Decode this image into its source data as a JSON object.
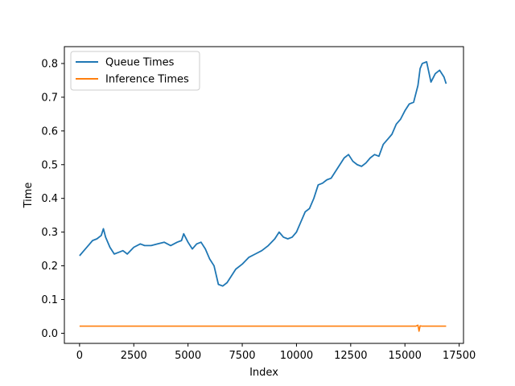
{
  "chart_data": {
    "type": "line",
    "title": "",
    "xlabel": "Index",
    "ylabel": "Time",
    "xlim": [
      -700,
      17700
    ],
    "ylim": [
      -0.03,
      0.85
    ],
    "x_ticks": [
      0,
      2500,
      5000,
      7500,
      10000,
      12500,
      15000,
      17500
    ],
    "y_ticks": [
      0.0,
      0.1,
      0.2,
      0.3,
      0.4,
      0.5,
      0.6,
      0.7,
      0.8
    ],
    "grid": false,
    "legend_position": "upper-left",
    "series": [
      {
        "name": "Queue Times",
        "color": "#1f77b4",
        "x": [
          0,
          200,
          400,
          600,
          800,
          1000,
          1100,
          1200,
          1400,
          1600,
          1800,
          2000,
          2200,
          2500,
          2800,
          3000,
          3300,
          3600,
          3900,
          4200,
          4500,
          4700,
          4800,
          5000,
          5200,
          5400,
          5600,
          5800,
          6000,
          6200,
          6400,
          6600,
          6800,
          7000,
          7200,
          7500,
          7800,
          8100,
          8400,
          8700,
          9000,
          9200,
          9400,
          9600,
          9800,
          10000,
          10200,
          10400,
          10600,
          10800,
          11000,
          11200,
          11400,
          11600,
          11800,
          12000,
          12200,
          12400,
          12600,
          12800,
          13000,
          13200,
          13400,
          13600,
          13800,
          14000,
          14200,
          14400,
          14600,
          14800,
          15000,
          15200,
          15400,
          15600,
          15700,
          15800,
          16000,
          16100,
          16200,
          16400,
          16600,
          16800,
          16900
        ],
        "values": [
          0.23,
          0.245,
          0.26,
          0.275,
          0.28,
          0.29,
          0.31,
          0.285,
          0.255,
          0.235,
          0.24,
          0.245,
          0.235,
          0.255,
          0.265,
          0.26,
          0.26,
          0.265,
          0.27,
          0.26,
          0.27,
          0.275,
          0.295,
          0.27,
          0.25,
          0.265,
          0.27,
          0.25,
          0.22,
          0.2,
          0.145,
          0.14,
          0.15,
          0.17,
          0.19,
          0.205,
          0.225,
          0.235,
          0.245,
          0.26,
          0.28,
          0.3,
          0.285,
          0.28,
          0.285,
          0.3,
          0.33,
          0.36,
          0.37,
          0.4,
          0.44,
          0.445,
          0.455,
          0.46,
          0.48,
          0.5,
          0.52,
          0.53,
          0.51,
          0.5,
          0.495,
          0.505,
          0.52,
          0.53,
          0.525,
          0.56,
          0.575,
          0.59,
          0.62,
          0.635,
          0.66,
          0.68,
          0.685,
          0.735,
          0.785,
          0.8,
          0.805,
          0.775,
          0.745,
          0.77,
          0.78,
          0.76,
          0.74
        ]
      },
      {
        "name": "Inference Times",
        "color": "#ff7f0e",
        "x": [
          0,
          2000,
          4000,
          6000,
          8000,
          10000,
          12000,
          14000,
          15500,
          15600,
          15650,
          15700,
          15800,
          16500,
          16900
        ],
        "values": [
          0.021,
          0.021,
          0.021,
          0.021,
          0.021,
          0.021,
          0.021,
          0.021,
          0.021,
          0.024,
          0.006,
          0.022,
          0.021,
          0.021,
          0.021
        ]
      }
    ]
  }
}
